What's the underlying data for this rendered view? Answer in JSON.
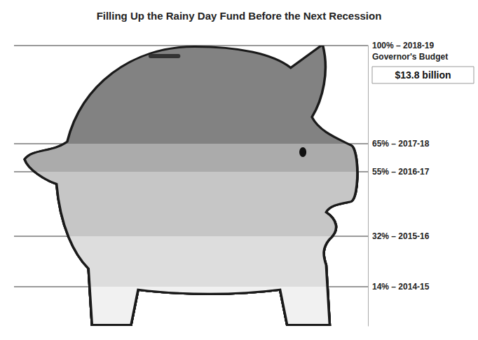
{
  "chart_data": {
    "type": "pictorial",
    "title": "Filling Up the Rainy Day Fund Before the Next Recession",
    "values": [
      14,
      32,
      55,
      65,
      100
    ],
    "colors": [
      "#f1f1f1",
      "#dddddd",
      "#c6c6c6",
      "#ababab",
      "#828282"
    ],
    "ylim": [
      0,
      100
    ],
    "yticks": [
      {
        "value": 14,
        "label": "14% – 2014-15"
      },
      {
        "value": 32,
        "label": "32% – 2015-16"
      },
      {
        "value": 55,
        "label": "55% – 2016-17"
      },
      {
        "value": 65,
        "label": "65% – 2017-18"
      },
      {
        "value": 100,
        "label": "100% – 2018-19"
      }
    ],
    "grid": true,
    "tick_labels": "y",
    "annotations": [
      "Governor's Budget",
      "$13.8 billion"
    ]
  }
}
